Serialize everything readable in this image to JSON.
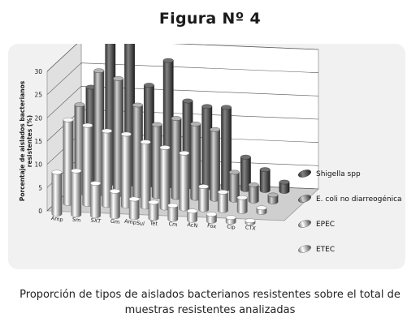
{
  "title": "Figura Nº 4",
  "caption": {
    "line1": "Proporción de tipos de aislados bacterianos resistentes sobre el total de",
    "line2": "muestras resistentes analizadas"
  },
  "colors": {
    "Shigella spp": "#5a5a5a",
    "E. coli no diarreogénica": "#909090",
    "EPEC": "#c6c6c6",
    "ETEC": "#e6e6e6"
  },
  "chart_data": {
    "type": "bar",
    "subtype": "3d-column",
    "title": "",
    "xlabel": "",
    "ylabel": "Porcentaje de aislados bacterianos resistentes (%)",
    "ylim": [
      0,
      30
    ],
    "yticks": [
      0,
      5,
      10,
      15,
      20,
      25,
      30
    ],
    "grid": true,
    "legend_position": "right",
    "categories": [
      "Amp",
      "Sm",
      "SXT",
      "Gm",
      "AmpSul",
      "Tet",
      "Cm",
      "AcN",
      "Fox",
      "Cip",
      "CTX"
    ],
    "series": [
      {
        "name": "Shigella spp",
        "values": [
          20.5,
          31.5,
          31,
          21.5,
          27,
          18.5,
          17.5,
          17.5,
          7,
          4.5,
          2
        ]
      },
      {
        "name": "E. coli no diarreogénica",
        "values": [
          19,
          26.5,
          25,
          19.5,
          15.5,
          17,
          16,
          15,
          6,
          3.5,
          1.5
        ]
      },
      {
        "name": "EPEC",
        "values": [
          18,
          17,
          16,
          15.5,
          14,
          13,
          12,
          5,
          4,
          3,
          1
        ]
      },
      {
        "name": "ETEC",
        "values": [
          9,
          9.5,
          7,
          5.5,
          4,
          3.5,
          3,
          2,
          1.5,
          1,
          0.5
        ]
      }
    ]
  }
}
